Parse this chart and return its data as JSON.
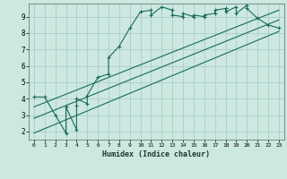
{
  "title": "",
  "xlabel": "Humidex (Indice chaleur)",
  "ylabel": "",
  "bg_color": "#cce8e0",
  "grid_color": "#aacec6",
  "line_color": "#1a6b5a",
  "xlim": [
    -0.5,
    23.5
  ],
  "ylim": [
    1.5,
    9.8
  ],
  "xticks": [
    0,
    1,
    2,
    3,
    4,
    5,
    6,
    7,
    8,
    9,
    10,
    11,
    12,
    13,
    14,
    15,
    16,
    17,
    18,
    19,
    20,
    21,
    22,
    23
  ],
  "yticks": [
    2,
    3,
    4,
    5,
    6,
    7,
    8,
    9
  ],
  "main_x": [
    0,
    1,
    2,
    3,
    3,
    4,
    4,
    4,
    5,
    5,
    6,
    7,
    7,
    8,
    9,
    10,
    11,
    11,
    12,
    13,
    13,
    14,
    14,
    15,
    15,
    16,
    16,
    17,
    17,
    18,
    18,
    19,
    19,
    20,
    20,
    21,
    22,
    23
  ],
  "main_y": [
    4.1,
    4.1,
    3.0,
    1.9,
    3.5,
    2.1,
    3.6,
    4.0,
    3.7,
    4.2,
    5.3,
    5.5,
    6.5,
    7.2,
    8.3,
    9.3,
    9.4,
    9.1,
    9.6,
    9.4,
    9.1,
    9.0,
    9.2,
    9.0,
    9.1,
    9.0,
    9.1,
    9.2,
    9.4,
    9.5,
    9.3,
    9.6,
    9.2,
    9.7,
    9.5,
    8.9,
    8.5,
    8.3
  ],
  "line1_x": [
    0,
    23
  ],
  "line1_y": [
    3.5,
    9.4
  ],
  "line2_x": [
    0,
    23
  ],
  "line2_y": [
    2.8,
    8.8
  ],
  "line3_x": [
    0,
    23
  ],
  "line3_y": [
    1.9,
    8.1
  ]
}
